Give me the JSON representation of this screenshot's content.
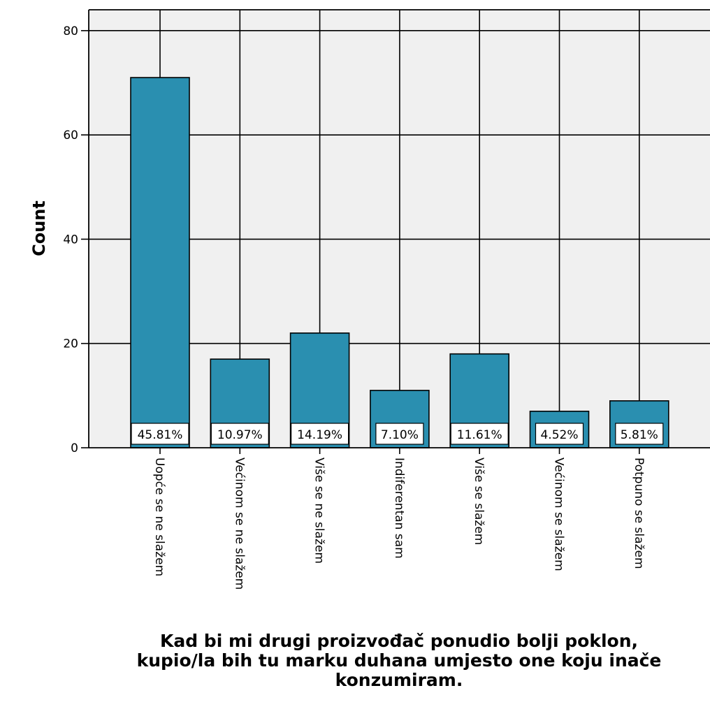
{
  "chart_data": {
    "type": "bar",
    "categories": [
      "Uopće se ne slažem",
      "Većinom se ne slažem",
      "Više se ne slažem",
      "Indiferentan sam",
      "Više se slažem",
      "Većinom se slažem",
      "Potpuno se slažem"
    ],
    "values": [
      71,
      17,
      22,
      11,
      18,
      7,
      9
    ],
    "data_labels": [
      "45.81%",
      "10.97%",
      "14.19%",
      "7.10%",
      "11.61%",
      "4.52%",
      "5.81%"
    ],
    "ylabel": "Count",
    "xlabel_lines": [
      "Kad bi mi drugi proizvođač ponudio bolji poklon,",
      "kupio/la bih tu marku duhana umjesto one koju inače",
      "konzumiram."
    ],
    "yticks": [
      "0",
      "20",
      "40",
      "60",
      "80"
    ],
    "ylim": [
      0,
      84
    ],
    "grid": true,
    "colors": {
      "bar_fill": "#2a8fb0",
      "bar_stroke": "#000000",
      "plot_background": "#f0f0f0",
      "grid": "#000000"
    }
  }
}
